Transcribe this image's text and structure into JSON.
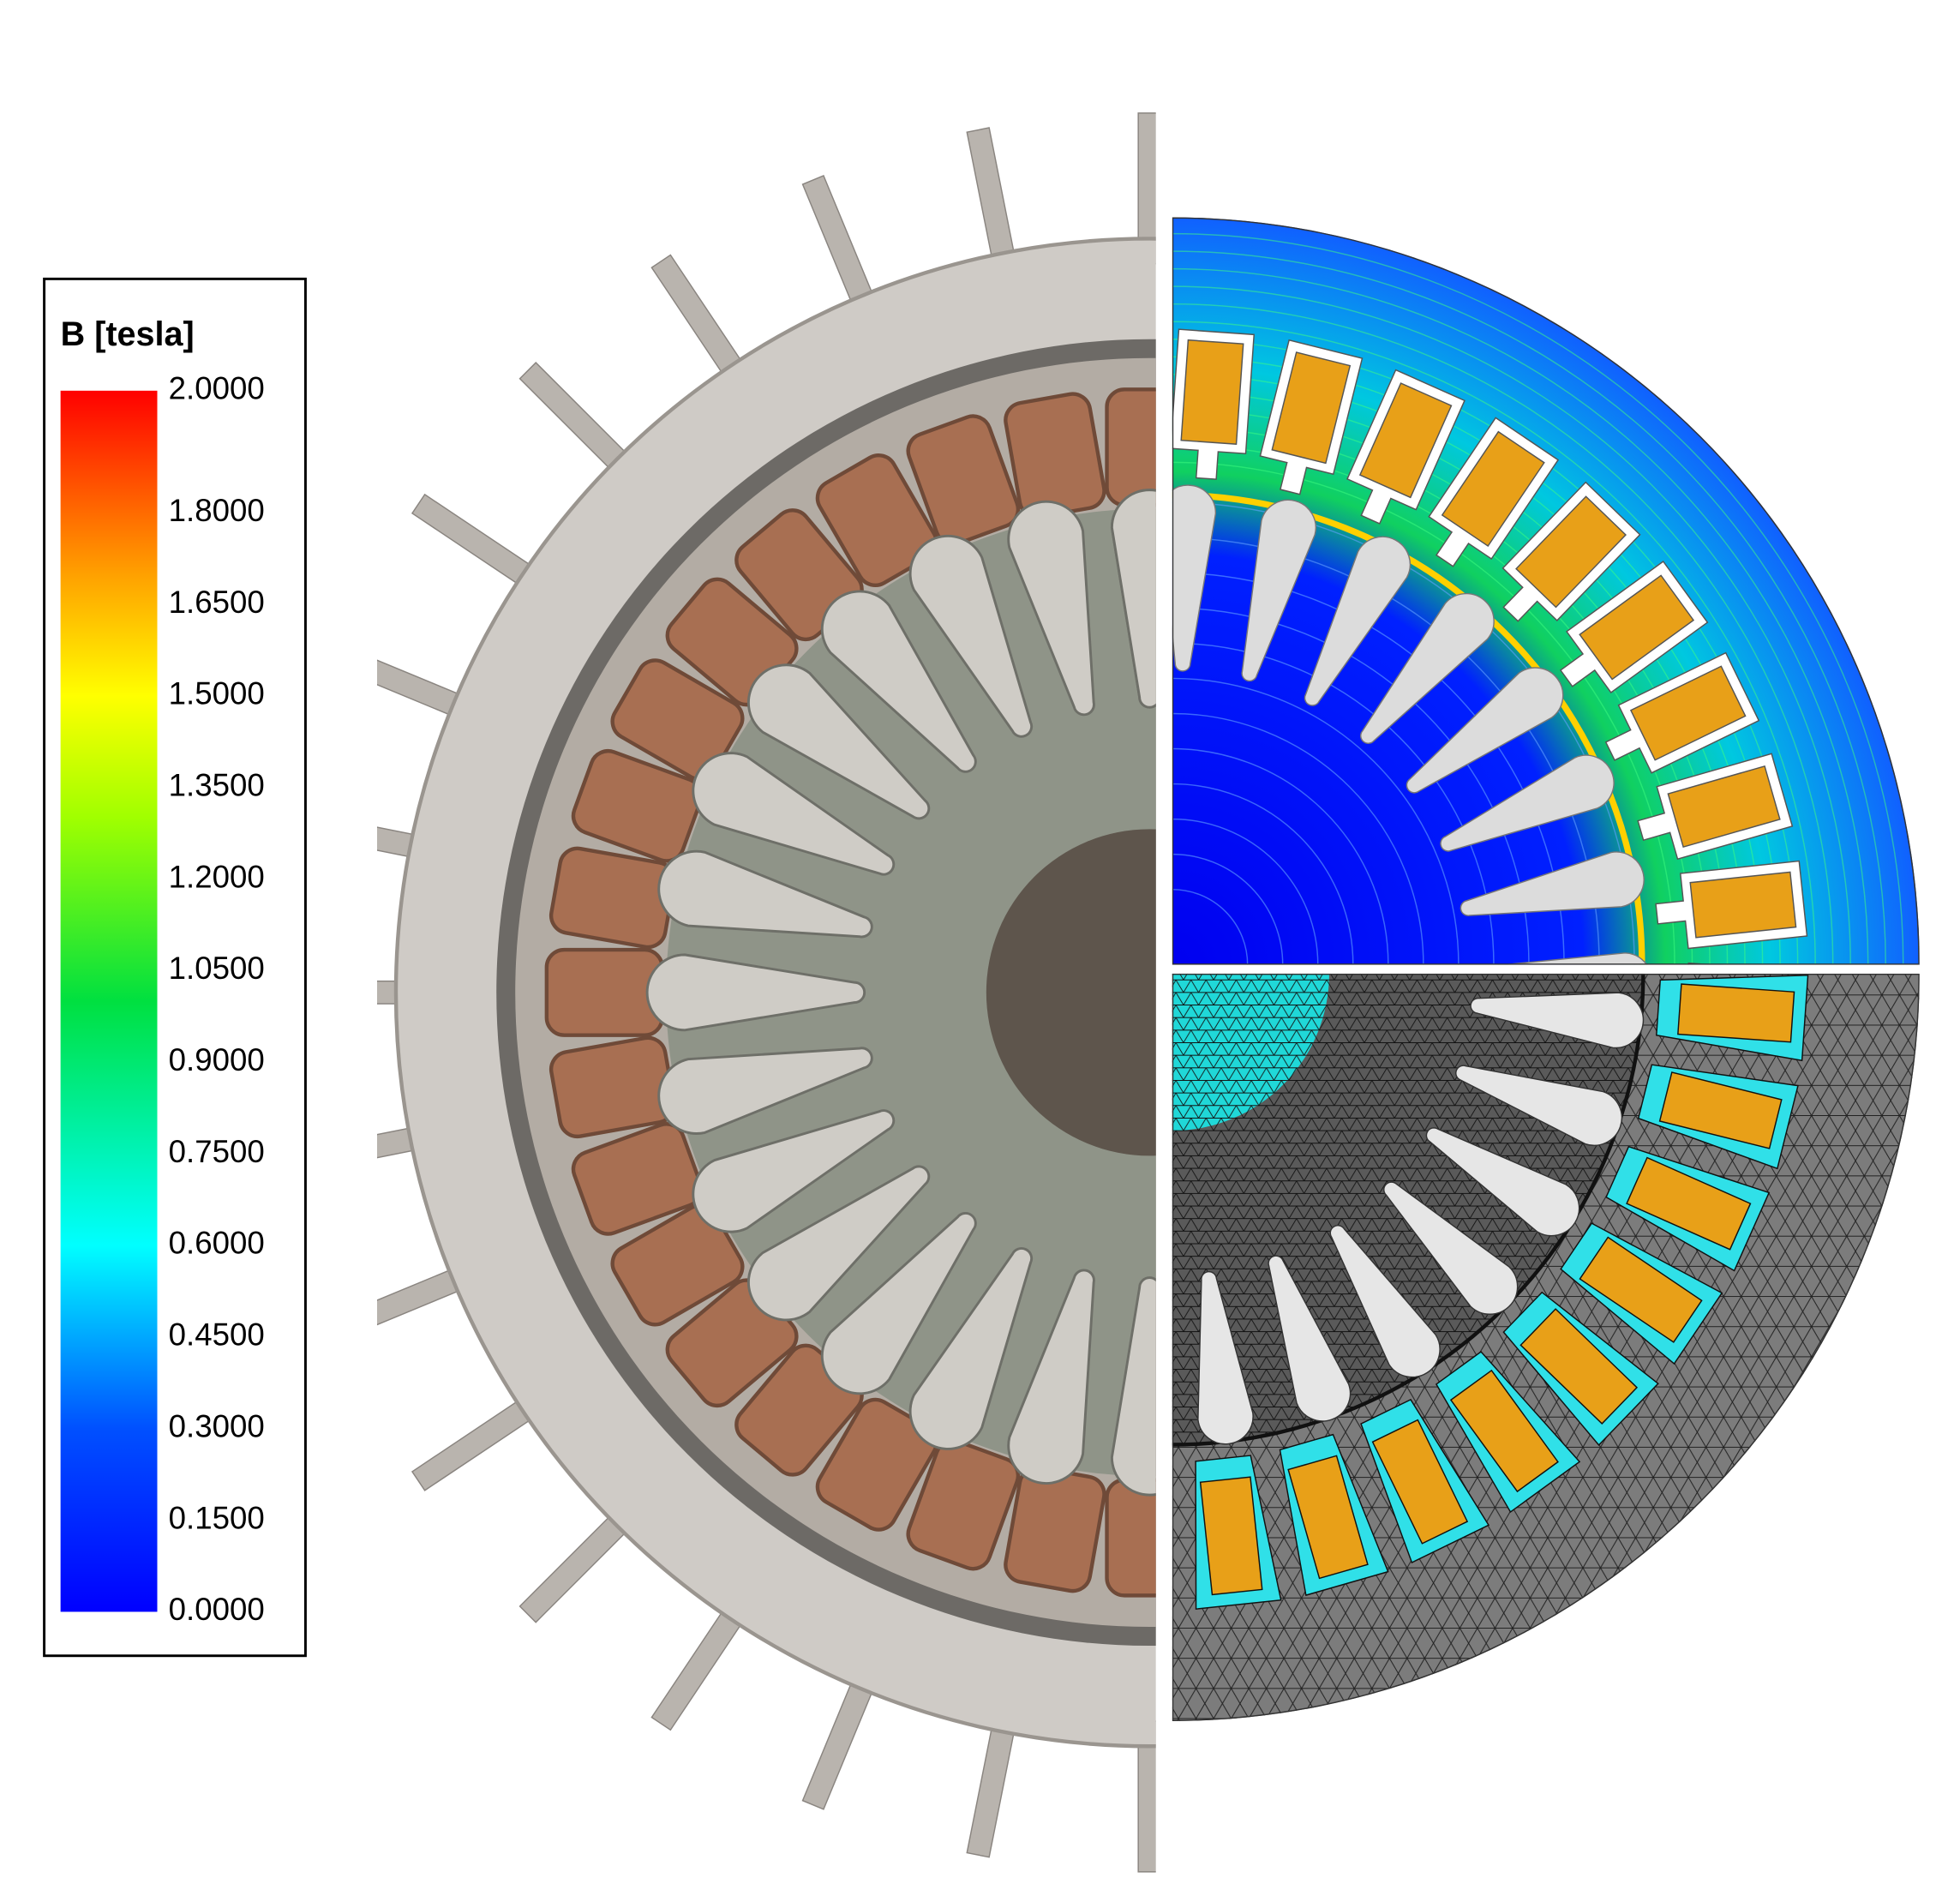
{
  "legend": {
    "title": "B [tesla]",
    "range": [
      0,
      2
    ],
    "ticks": [
      {
        "value": 2.0,
        "label": "2.0000"
      },
      {
        "value": 1.8,
        "label": "1.8000"
      },
      {
        "value": 1.65,
        "label": "1.6500"
      },
      {
        "value": 1.5,
        "label": "1.5000"
      },
      {
        "value": 1.35,
        "label": "1.3500"
      },
      {
        "value": 1.2,
        "label": "1.2000"
      },
      {
        "value": 1.05,
        "label": "1.0500"
      },
      {
        "value": 0.9,
        "label": "0.9000"
      },
      {
        "value": 0.75,
        "label": "0.7500"
      },
      {
        "value": 0.6,
        "label": "0.6000"
      },
      {
        "value": 0.45,
        "label": "0.4500"
      },
      {
        "value": 0.3,
        "label": "0.3000"
      },
      {
        "value": 0.15,
        "label": "0.1500"
      },
      {
        "value": 0.0,
        "label": "0.0000"
      }
    ]
  }
}
